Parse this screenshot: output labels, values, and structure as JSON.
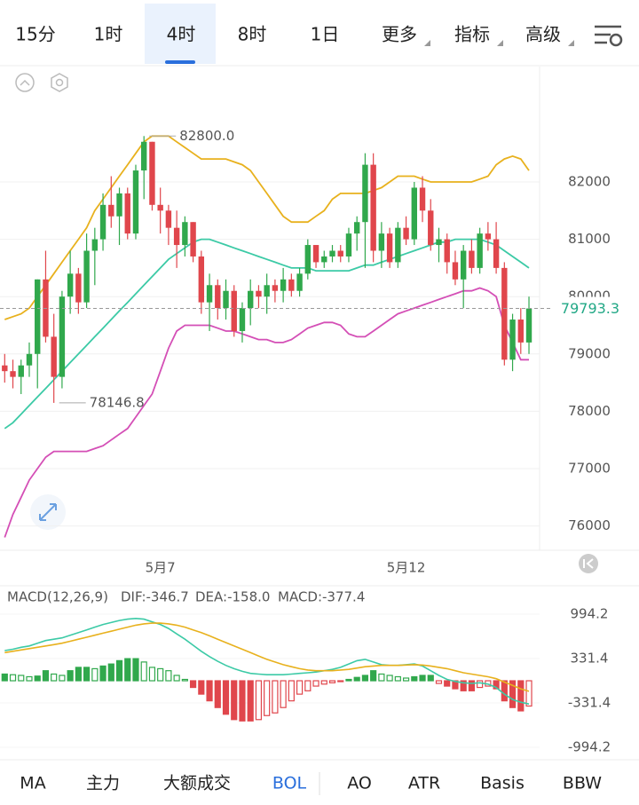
{
  "tabs": [
    "15分",
    "1时",
    "4时",
    "8时",
    "1日",
    "更多",
    "指标",
    "高级"
  ],
  "indicator_tabs": [
    "MA",
    "主力",
    "大额成交",
    "BOL",
    "AO",
    "ATR",
    "Basis",
    "BBW"
  ],
  "chart_data": {
    "type": "candlestick",
    "categories": [
      null,
      null,
      null,
      null,
      null,
      null,
      null,
      null,
      null,
      null,
      null,
      null,
      null,
      null,
      null,
      null,
      null,
      null,
      null,
      "5月7",
      null,
      null,
      null,
      null,
      null,
      null,
      null,
      null,
      null,
      null,
      null,
      null,
      null,
      null,
      null,
      null,
      null,
      null,
      null,
      null,
      null,
      null,
      null,
      null,
      null,
      null,
      null,
      null,
      null,
      "5月12",
      null,
      null,
      null,
      null,
      null,
      null,
      null,
      null,
      null,
      null,
      null,
      null,
      null,
      null,
      null
    ],
    "open": [
      78800,
      78700,
      78600,
      78800,
      79000,
      80300,
      79300,
      78600,
      80000,
      80400,
      79900,
      80800,
      81000,
      81600,
      81400,
      81800,
      81100,
      82200,
      82700,
      81600,
      81500,
      81200,
      80900,
      81300,
      80700,
      79900,
      80200,
      79800,
      80100,
      79400,
      79800,
      80100,
      80000,
      80200,
      80100,
      80300,
      80100,
      80400,
      80900,
      80600,
      80700,
      80800,
      80700,
      81100,
      81300,
      82300,
      80800,
      81100,
      80600,
      81200,
      81000,
      81900,
      81500,
      80900,
      81000,
      80600,
      80300,
      80800,
      80500,
      81100,
      81000,
      80500,
      78900,
      79600,
      79200
    ],
    "high": [
      79000,
      78900,
      78900,
      79200,
      80300,
      80800,
      79700,
      80100,
      80800,
      80500,
      81100,
      81200,
      81800,
      82100,
      81900,
      81900,
      82300,
      82800,
      82700,
      81900,
      81600,
      81500,
      81400,
      81300,
      80800,
      80400,
      80300,
      80300,
      80200,
      79900,
      80300,
      80200,
      80400,
      80300,
      80500,
      80400,
      80500,
      81000,
      80900,
      80800,
      80900,
      80900,
      81200,
      81400,
      82500,
      82500,
      81300,
      81200,
      81300,
      81400,
      82000,
      82100,
      81700,
      81200,
      81100,
      80800,
      80900,
      81000,
      81200,
      81300,
      81300,
      80600,
      79700,
      79800,
      80000
    ],
    "low": [
      78500,
      78400,
      78300,
      78600,
      78400,
      79200,
      78146.8,
      78400,
      79700,
      79700,
      79800,
      80200,
      80800,
      81200,
      80900,
      81000,
      81000,
      81700,
      81500,
      81100,
      80900,
      80500,
      80700,
      80600,
      79700,
      79400,
      79600,
      79600,
      79300,
      79200,
      79500,
      79800,
      79700,
      79900,
      79900,
      80000,
      80000,
      80300,
      80500,
      80500,
      80600,
      80600,
      80600,
      80800,
      80500,
      80600,
      80500,
      80500,
      80500,
      80900,
      80900,
      81300,
      80800,
      80600,
      80400,
      80200,
      79800,
      80400,
      80400,
      80800,
      80400,
      78800,
      78700,
      79000,
      79000
    ],
    "close": [
      78700,
      78600,
      78800,
      79000,
      80300,
      79300,
      78600,
      80000,
      80400,
      79900,
      80800,
      81000,
      81600,
      81400,
      81800,
      81100,
      82200,
      82700,
      81600,
      81500,
      81200,
      80900,
      81300,
      80700,
      79900,
      80200,
      79800,
      80100,
      79400,
      79800,
      80100,
      80000,
      80200,
      80100,
      80300,
      80100,
      80400,
      80900,
      80600,
      80700,
      80800,
      80700,
      81100,
      81300,
      82300,
      80800,
      81100,
      80600,
      81200,
      81000,
      81900,
      81500,
      80900,
      81000,
      80600,
      80300,
      80800,
      80500,
      81100,
      81000,
      80500,
      78900,
      79600,
      79200,
      79793.3
    ],
    "max_label": {
      "value": 82800,
      "label": "82800.0"
    },
    "min_label": 78146.8,
    "boll": [
      {
        "name": "upper",
        "color": "#e8b11d",
        "values": [
          79600,
          79650,
          79700,
          79800,
          80000,
          80200,
          80400,
          80600,
          80800,
          81000,
          81200,
          81500,
          81700,
          81900,
          82100,
          82300,
          82500,
          82700,
          82800,
          82800,
          82800,
          82700,
          82600,
          82500,
          82400,
          82400,
          82400,
          82400,
          82350,
          82300,
          82200,
          82000,
          81800,
          81600,
          81400,
          81300,
          81300,
          81300,
          81400,
          81500,
          81700,
          81800,
          81800,
          81800,
          81800,
          81850,
          81900,
          82000,
          82100,
          82100,
          82100,
          82050,
          82000,
          82000,
          82000,
          82000,
          82000,
          82000,
          82050,
          82100,
          82300,
          82400,
          82450,
          82400,
          82200
        ]
      },
      {
        "name": "mid",
        "color": "#3ccaa6",
        "values": [
          77700,
          77800,
          77950,
          78100,
          78250,
          78400,
          78550,
          78700,
          78850,
          79000,
          79150,
          79300,
          79450,
          79600,
          79750,
          79900,
          80050,
          80200,
          80350,
          80500,
          80650,
          80750,
          80850,
          80950,
          81000,
          81000,
          80950,
          80900,
          80850,
          80800,
          80750,
          80700,
          80650,
          80600,
          80550,
          80500,
          80500,
          80500,
          80450,
          80450,
          80450,
          80450,
          80450,
          80500,
          80550,
          80550,
          80600,
          80650,
          80700,
          80750,
          80800,
          80850,
          80900,
          80950,
          80950,
          81000,
          81000,
          81000,
          81000,
          80950,
          80900,
          80800,
          80700,
          80600,
          80500
        ]
      },
      {
        "name": "lower",
        "color": "#d44fb6",
        "values": [
          75800,
          76200,
          76500,
          76800,
          77000,
          77200,
          77300,
          77300,
          77300,
          77300,
          77300,
          77350,
          77400,
          77500,
          77600,
          77700,
          77900,
          78100,
          78300,
          78700,
          79100,
          79400,
          79500,
          79500,
          79500,
          79500,
          79450,
          79400,
          79400,
          79350,
          79300,
          79250,
          79250,
          79200,
          79200,
          79250,
          79350,
          79450,
          79500,
          79550,
          79550,
          79500,
          79350,
          79300,
          79300,
          79400,
          79500,
          79600,
          79700,
          79750,
          79800,
          79850,
          79900,
          79950,
          80000,
          80050,
          80100,
          80100,
          80150,
          80100,
          80000,
          79500,
          79200,
          78900,
          78900
        ]
      }
    ],
    "ylim": [
      75576,
      84012
    ],
    "yticks": [
      82000,
      81000,
      80000,
      79000,
      78000,
      77000,
      76000
    ],
    "last_price": 79793.3,
    "up_color": "#30a84c",
    "down_color": "#e0464c",
    "macd": {
      "title": "MACD(12,26,9)",
      "dif_label": "DIF:-346.7",
      "dea_label": "DEA:-158.0",
      "macd_label": "MACD:-377.4",
      "ylim": [
        -1166,
        1418
      ],
      "yticks": [
        994.2,
        331.4,
        -331.4,
        -994.2
      ],
      "hist": [
        100,
        90,
        80,
        60,
        70,
        150,
        100,
        80,
        150,
        200,
        200,
        180,
        220,
        250,
        300,
        330,
        330,
        280,
        200,
        180,
        150,
        80,
        20,
        -100,
        -200,
        -300,
        -400,
        -500,
        -580,
        -600,
        -600,
        -580,
        -520,
        -480,
        -400,
        -300,
        -200,
        -150,
        -80,
        -50,
        -30,
        -10,
        20,
        50,
        80,
        150,
        100,
        80,
        60,
        40,
        60,
        80,
        80,
        -40,
        -80,
        -120,
        -150,
        -150,
        -100,
        -80,
        -120,
        -300,
        -400,
        -450,
        -377.4
      ],
      "dif": {
        "color": "#3ccaa6",
        "values": [
          450,
          470,
          500,
          520,
          560,
          600,
          620,
          640,
          680,
          720,
          760,
          800,
          840,
          870,
          900,
          920,
          930,
          920,
          880,
          840,
          780,
          700,
          620,
          530,
          440,
          360,
          290,
          230,
          180,
          140,
          110,
          100,
          90,
          90,
          90,
          100,
          110,
          120,
          130,
          150,
          170,
          200,
          250,
          300,
          320,
          280,
          240,
          230,
          230,
          240,
          250,
          220,
          150,
          80,
          20,
          -10,
          -30,
          -40,
          -30,
          -50,
          -100,
          -200,
          -280,
          -320,
          -346.7
        ]
      },
      "dea": {
        "color": "#e8b11d",
        "values": [
          420,
          440,
          460,
          480,
          500,
          520,
          540,
          560,
          590,
          620,
          650,
          680,
          710,
          740,
          770,
          800,
          830,
          850,
          860,
          860,
          850,
          830,
          800,
          760,
          720,
          670,
          620,
          570,
          520,
          470,
          420,
          370,
          320,
          280,
          240,
          210,
          180,
          160,
          150,
          150,
          150,
          160,
          170,
          190,
          210,
          220,
          230,
          230,
          230,
          235,
          240,
          235,
          220,
          200,
          180,
          150,
          120,
          100,
          80,
          60,
          30,
          -20,
          -70,
          -120,
          -158
        ]
      }
    }
  }
}
